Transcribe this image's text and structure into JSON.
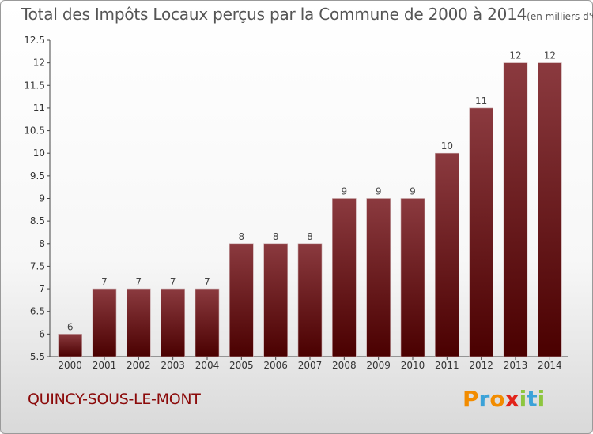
{
  "header": {
    "title": "Total des Impôts Locaux perçus par la Commune de 2000 à 2014",
    "unit": "(en milliers d'€)"
  },
  "commune": "QUINCY-SOUS-LE-MONT",
  "logo": {
    "text": "Proxiti",
    "letters": [
      {
        "char": "P",
        "color": "#f28c00"
      },
      {
        "char": "r",
        "color": "#3ba2d8"
      },
      {
        "char": "o",
        "color": "#f28c00"
      },
      {
        "char": "x",
        "color": "#e2231a"
      },
      {
        "char": "i",
        "color": "#8dc63f"
      },
      {
        "char": "t",
        "color": "#3ba2d8"
      },
      {
        "char": "i",
        "color": "#8dc63f"
      }
    ]
  },
  "chart_data": {
    "type": "bar",
    "title": "Total des Impôts Locaux perçus par la Commune de 2000 à 2014",
    "xlabel": "",
    "ylabel": "",
    "categories": [
      "2000",
      "2001",
      "2002",
      "2003",
      "2004",
      "2005",
      "2006",
      "2007",
      "2008",
      "2009",
      "2010",
      "2011",
      "2012",
      "2013",
      "2014"
    ],
    "values": [
      6,
      7,
      7,
      7,
      7,
      8,
      8,
      8,
      9,
      9,
      9,
      10,
      11,
      12,
      12
    ],
    "data_labels": [
      "6",
      "7",
      "7",
      "7",
      "7",
      "8",
      "8",
      "8",
      "9",
      "9",
      "9",
      "10",
      "11",
      "12",
      "12"
    ],
    "ylim": [
      5.5,
      12.5
    ],
    "yticks": [
      5.5,
      6,
      6.5,
      7,
      7.5,
      8,
      8.5,
      9,
      9.5,
      10,
      10.5,
      11,
      11.5,
      12,
      12.5
    ],
    "ytick_labels": [
      "5.5",
      "6",
      "6.5",
      "7",
      "7.5",
      "8",
      "8.5",
      "9",
      "9.5",
      "10",
      "10.5",
      "11",
      "11.5",
      "12",
      "12.5"
    ],
    "bar_color_top": "#8b3a3f",
    "bar_color_bottom": "#4a0000",
    "grid": false,
    "legend": "none"
  }
}
